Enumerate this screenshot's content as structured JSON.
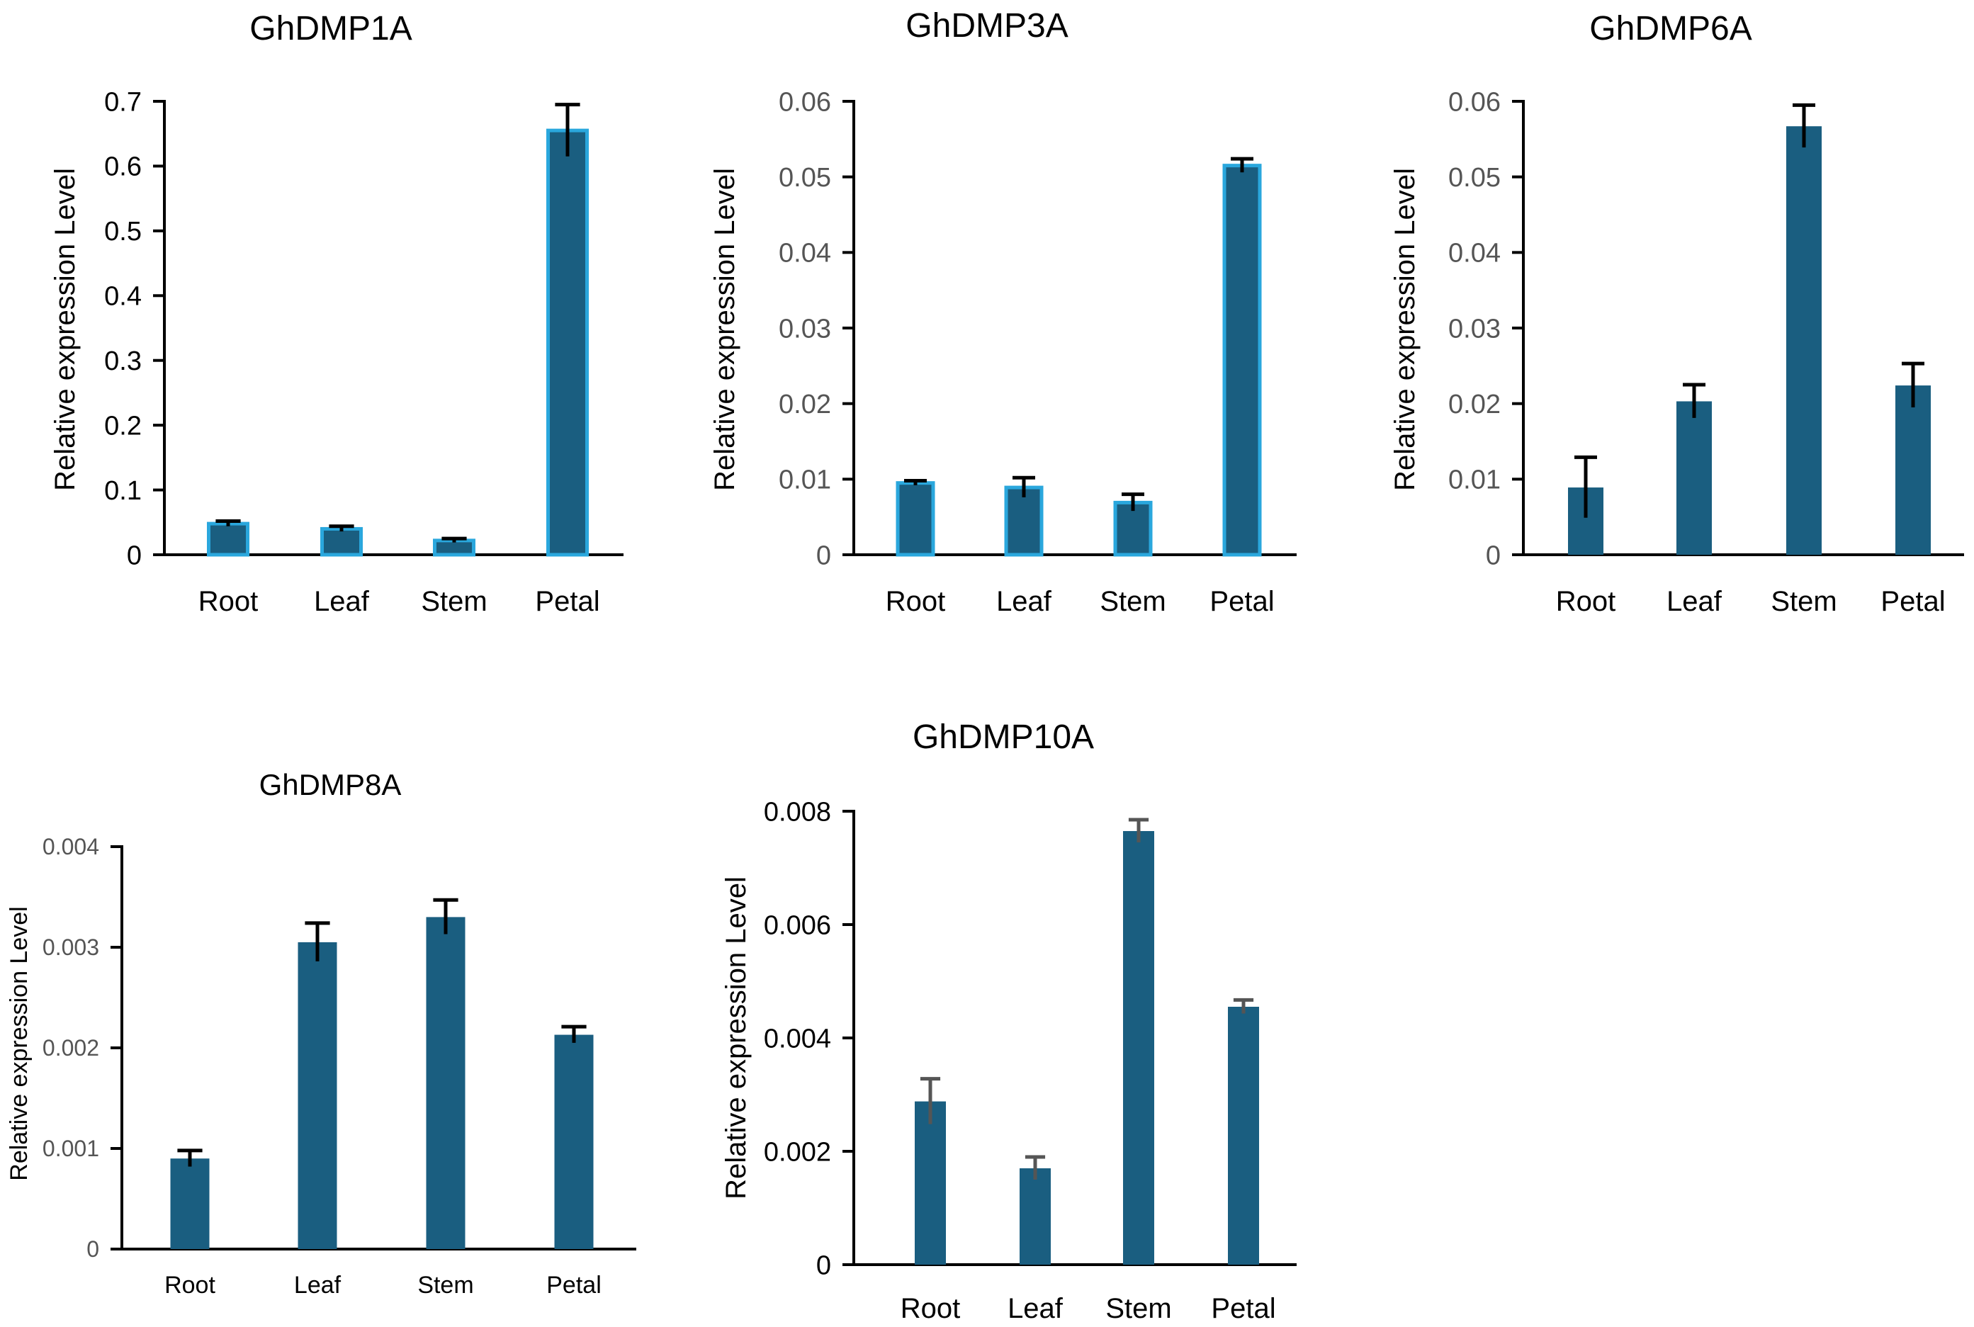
{
  "chart_data": [
    {
      "type": "bar",
      "title": "GhDMP1A",
      "ylabel": "Relative expression Level",
      "xlabel": "",
      "categories": [
        "Root",
        "Leaf",
        "Stem",
        "Petal"
      ],
      "values": [
        0.048,
        0.04,
        0.022,
        0.655
      ],
      "errors": [
        0.004,
        0.004,
        0.003,
        0.04
      ],
      "ylim": [
        0,
        0.7
      ],
      "yticks": [
        "0",
        "0.1",
        "0.2",
        "0.3",
        "0.4",
        "0.5",
        "0.6",
        "0.7"
      ],
      "bar_color": "#1a5e80",
      "bar_edge": "#2aa7dd",
      "error_color": "#000000",
      "tick_color": "#000000"
    },
    {
      "type": "bar",
      "title": "GhDMP3A",
      "ylabel": "Relative expression Level",
      "xlabel": "",
      "categories": [
        "Root",
        "Leaf",
        "Stem",
        "Petal"
      ],
      "values": [
        0.0095,
        0.0089,
        0.0069,
        0.0515
      ],
      "errors": [
        0.0003,
        0.0013,
        0.0011,
        0.0009
      ],
      "ylim": [
        0,
        0.06
      ],
      "yticks": [
        "0",
        "0.01",
        "0.02",
        "0.03",
        "0.04",
        "0.05",
        "0.06"
      ],
      "bar_color": "#1a5e80",
      "bar_edge": "#2aa7dd",
      "error_color": "#000000",
      "tick_color": "#555555"
    },
    {
      "type": "bar",
      "title": "GhDMP6A",
      "ylabel": "Relative expression Level",
      "xlabel": "",
      "categories": [
        "Root",
        "Leaf",
        "Stem",
        "Petal"
      ],
      "values": [
        0.0089,
        0.0203,
        0.0567,
        0.0224
      ],
      "errors": [
        0.004,
        0.0022,
        0.0028,
        0.0029
      ],
      "ylim": [
        0,
        0.06
      ],
      "yticks": [
        "0",
        "0.01",
        "0.02",
        "0.03",
        "0.04",
        "0.05",
        "0.06"
      ],
      "bar_color": "#1a5e80",
      "bar_edge": "#1a5e80",
      "error_color": "#000000",
      "tick_color": "#555555"
    },
    {
      "type": "bar",
      "title": "GhDMP8A",
      "ylabel": "Relative expression Level",
      "xlabel": "",
      "categories": [
        "Root",
        "Leaf",
        "Stem",
        "Petal"
      ],
      "values": [
        0.0009,
        0.00305,
        0.0033,
        0.00213
      ],
      "errors": [
        8e-05,
        0.00019,
        0.00017,
        8e-05
      ],
      "ylim": [
        0,
        0.004
      ],
      "yticks": [
        "0",
        "0.001",
        "0.002",
        "0.003",
        "0.004"
      ],
      "bar_color": "#1a5e80",
      "bar_edge": "#1a5e80",
      "error_color": "#000000",
      "tick_color": "#555555"
    },
    {
      "type": "bar",
      "title": "GhDMP10A",
      "ylabel": "Relative expression Level",
      "xlabel": "",
      "categories": [
        "Root",
        "Leaf",
        "Stem",
        "Petal"
      ],
      "values": [
        0.00288,
        0.0017,
        0.00765,
        0.00455
      ],
      "errors": [
        0.0004,
        0.0002,
        0.0002,
        0.00012
      ],
      "ylim": [
        0,
        0.008
      ],
      "yticks": [
        "0",
        "0.002",
        "0.004",
        "0.006",
        "0.008"
      ],
      "bar_color": "#1a5e80",
      "bar_edge": "#1a5e80",
      "error_color": "#555555",
      "tick_color": "#000000"
    }
  ]
}
